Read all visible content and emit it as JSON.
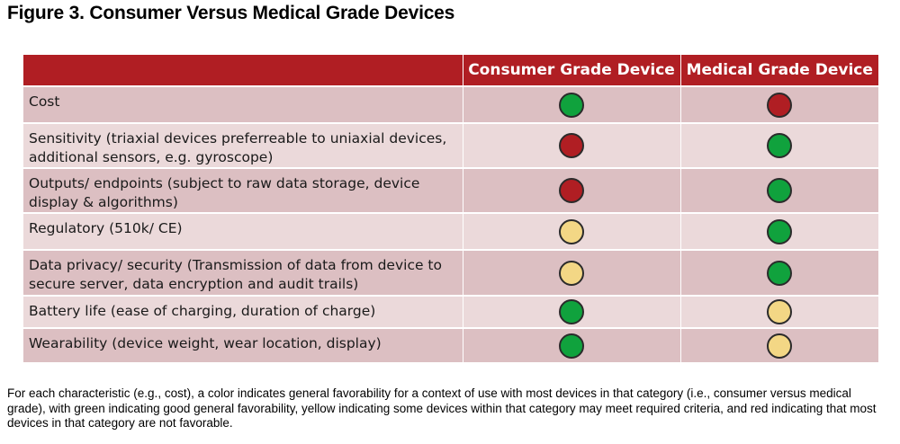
{
  "figure": {
    "title": "Figure 3. Consumer Versus Medical Grade Devices",
    "note": "For each characteristic (e.g., cost), a color indicates general favorability for a context of use with most devices in that category (i.e., consumer versus medical grade), with green indicating good general favorability, yellow indicating some devices within that category may meet required criteria, and red indicating that most devices in that category are not favorable."
  },
  "colors": {
    "header_bg": "#b01e23",
    "row_dark": "#dcbfc2",
    "row_light": "#ebd9da",
    "green": "#10a23d",
    "yellow": "#f3d785",
    "red": "#b01e23"
  },
  "table": {
    "headers": [
      "",
      "Consumer Grade Device",
      "Medical Grade Device"
    ],
    "rows": [
      {
        "label": "Cost",
        "consumer": "green",
        "medical": "red"
      },
      {
        "label": "Sensitivity (triaxial devices preferreable to uniaxial devices, additional sensors, e.g. gyroscope)",
        "consumer": "red",
        "medical": "green"
      },
      {
        "label": "Outputs/ endpoints (subject to raw data storage, device display & algorithms)",
        "consumer": "red",
        "medical": "green"
      },
      {
        "label": "Regulatory (510k/ CE)",
        "consumer": "yellow",
        "medical": "green"
      },
      {
        "label": "Data privacy/ security (Transmission of data from device to secure server, data encryption and audit trails)",
        "consumer": "yellow",
        "medical": "green"
      },
      {
        "label": "Battery life (ease of charging, duration of charge)",
        "consumer": "green",
        "medical": "yellow"
      },
      {
        "label": "Wearability (device weight, wear location, display)",
        "consumer": "green",
        "medical": "yellow"
      }
    ]
  }
}
